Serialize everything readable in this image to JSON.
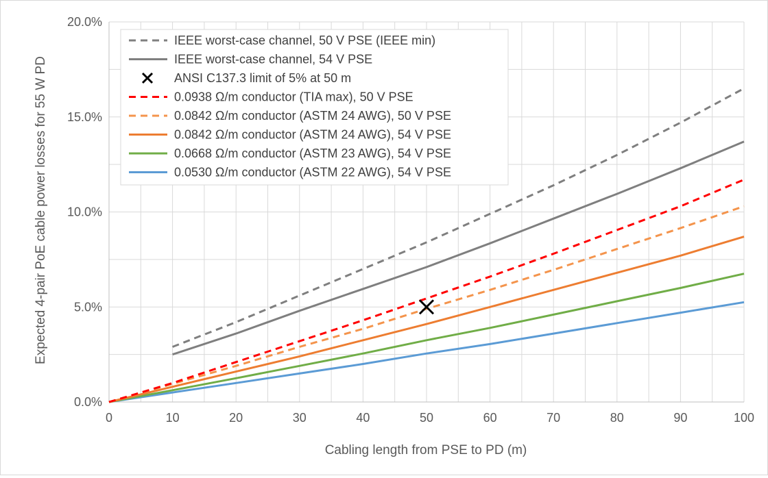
{
  "chart_data": {
    "type": "line",
    "title": "",
    "xlabel": "Cabling length from PSE to PD (m)",
    "ylabel": "Expected 4-pair PoE cable power losses for 55 W PD",
    "xlim": [
      0,
      100
    ],
    "ylim": [
      0,
      20
    ],
    "x_ticks": [
      "0",
      "10",
      "20",
      "30",
      "40",
      "50",
      "60",
      "70",
      "80",
      "90",
      "100"
    ],
    "y_ticks": [
      "0.0%",
      "5.0%",
      "10.0%",
      "15.0%",
      "20.0%"
    ],
    "grid": true,
    "legend_position": "top-left",
    "series": [
      {
        "name": "IEEE worst-case channel, 50 V PSE (IEEE min)",
        "color": "#7f7f7f",
        "dash": "dashed",
        "x": [
          10,
          20,
          30,
          40,
          50,
          60,
          70,
          80,
          90,
          100
        ],
        "y": [
          2.9,
          4.2,
          5.6,
          7.0,
          8.4,
          9.9,
          11.4,
          13.0,
          14.7,
          16.5
        ]
      },
      {
        "name": "IEEE worst-case channel, 54 V PSE",
        "color": "#7f7f7f",
        "dash": "solid",
        "x": [
          10,
          20,
          30,
          40,
          50,
          60,
          70,
          80,
          90,
          100
        ],
        "y": [
          2.5,
          3.6,
          4.8,
          5.95,
          7.1,
          8.35,
          9.65,
          10.95,
          12.3,
          13.7
        ]
      },
      {
        "name": "ANSI C137.3 limit of 5% at 50 m",
        "color": "#000000",
        "dash": "marker",
        "x": [
          50
        ],
        "y": [
          5.0
        ]
      },
      {
        "name": "0.0938 Ω/m conductor (TIA max), 50 V PSE",
        "color": "#ff0000",
        "dash": "dashed",
        "x": [
          0,
          10,
          20,
          30,
          40,
          50,
          60,
          70,
          80,
          90,
          100
        ],
        "y": [
          0,
          1.0,
          2.1,
          3.2,
          4.3,
          5.45,
          6.6,
          7.8,
          9.05,
          10.3,
          11.7
        ]
      },
      {
        "name": "0.0842 Ω/m conductor (ASTM 24 AWG), 50 V PSE",
        "color": "#f4944c",
        "dash": "dashed",
        "x": [
          0,
          10,
          20,
          30,
          40,
          50,
          60,
          70,
          80,
          90,
          100
        ],
        "y": [
          0,
          0.95,
          1.9,
          2.9,
          3.85,
          4.9,
          5.9,
          6.95,
          8.05,
          9.15,
          10.3
        ]
      },
      {
        "name": "0.0842 Ω/m conductor (ASTM 24 AWG), 54 V PSE",
        "color": "#ed7d31",
        "dash": "solid",
        "x": [
          0,
          10,
          20,
          30,
          40,
          50,
          60,
          70,
          80,
          90,
          100
        ],
        "y": [
          0,
          0.8,
          1.6,
          2.4,
          3.25,
          4.1,
          5.0,
          5.9,
          6.8,
          7.7,
          8.7
        ]
      },
      {
        "name": "0.0668 Ω/m conductor (ASTM 23 AWG), 54 V PSE",
        "color": "#70ad47",
        "dash": "solid",
        "x": [
          0,
          10,
          20,
          30,
          40,
          50,
          60,
          70,
          80,
          90,
          100
        ],
        "y": [
          0,
          0.62,
          1.25,
          1.9,
          2.55,
          3.25,
          3.9,
          4.6,
          5.3,
          6.0,
          6.75
        ]
      },
      {
        "name": "0.0530 Ω/m conductor (ASTM 22 AWG), 54 V PSE",
        "color": "#5b9bd5",
        "dash": "solid",
        "x": [
          0,
          10,
          20,
          30,
          40,
          50,
          60,
          70,
          80,
          90,
          100
        ],
        "y": [
          0,
          0.5,
          1.0,
          1.5,
          2.0,
          2.55,
          3.05,
          3.6,
          4.15,
          4.7,
          5.25
        ]
      }
    ]
  }
}
